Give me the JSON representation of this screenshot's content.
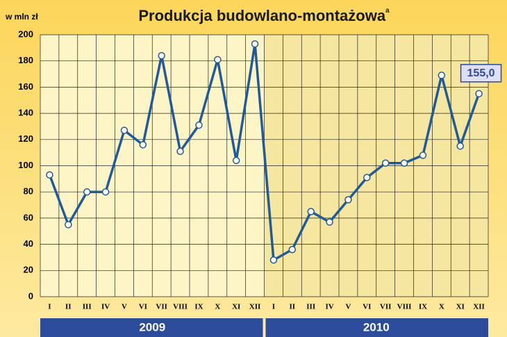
{
  "chart_data": {
    "type": "line",
    "title": "Produkcja budowlano-montażowa",
    "title_superscript": "a",
    "y_label": "w mln zł",
    "categories": [
      "I",
      "II",
      "III",
      "IV",
      "V",
      "VI",
      "VII",
      "VIII",
      "IX",
      "X",
      "XI",
      "XII",
      "I",
      "II",
      "III",
      "IV",
      "V",
      "VI",
      "VII",
      "VIII",
      "IX",
      "X",
      "XI",
      "XII"
    ],
    "groups": [
      "2009",
      "2010"
    ],
    "series": [
      {
        "name": "Produkcja budowlano-montażowa",
        "color": "#1f5a9a",
        "values": [
          93,
          55,
          80,
          80,
          127,
          116,
          184,
          111,
          131,
          181,
          104,
          193,
          28,
          36,
          65,
          57,
          74,
          91,
          102,
          102,
          108,
          169,
          115,
          155
        ],
        "value_labels": [
          null,
          null,
          null,
          null,
          null,
          null,
          null,
          null,
          null,
          null,
          null,
          null,
          null,
          null,
          null,
          null,
          null,
          null,
          null,
          null,
          null,
          null,
          null,
          "155,0"
        ]
      }
    ],
    "ylim": [
      0,
      200
    ],
    "yticks": [
      0,
      20,
      40,
      60,
      80,
      100,
      120,
      140,
      160,
      180,
      200
    ],
    "grid": true
  }
}
